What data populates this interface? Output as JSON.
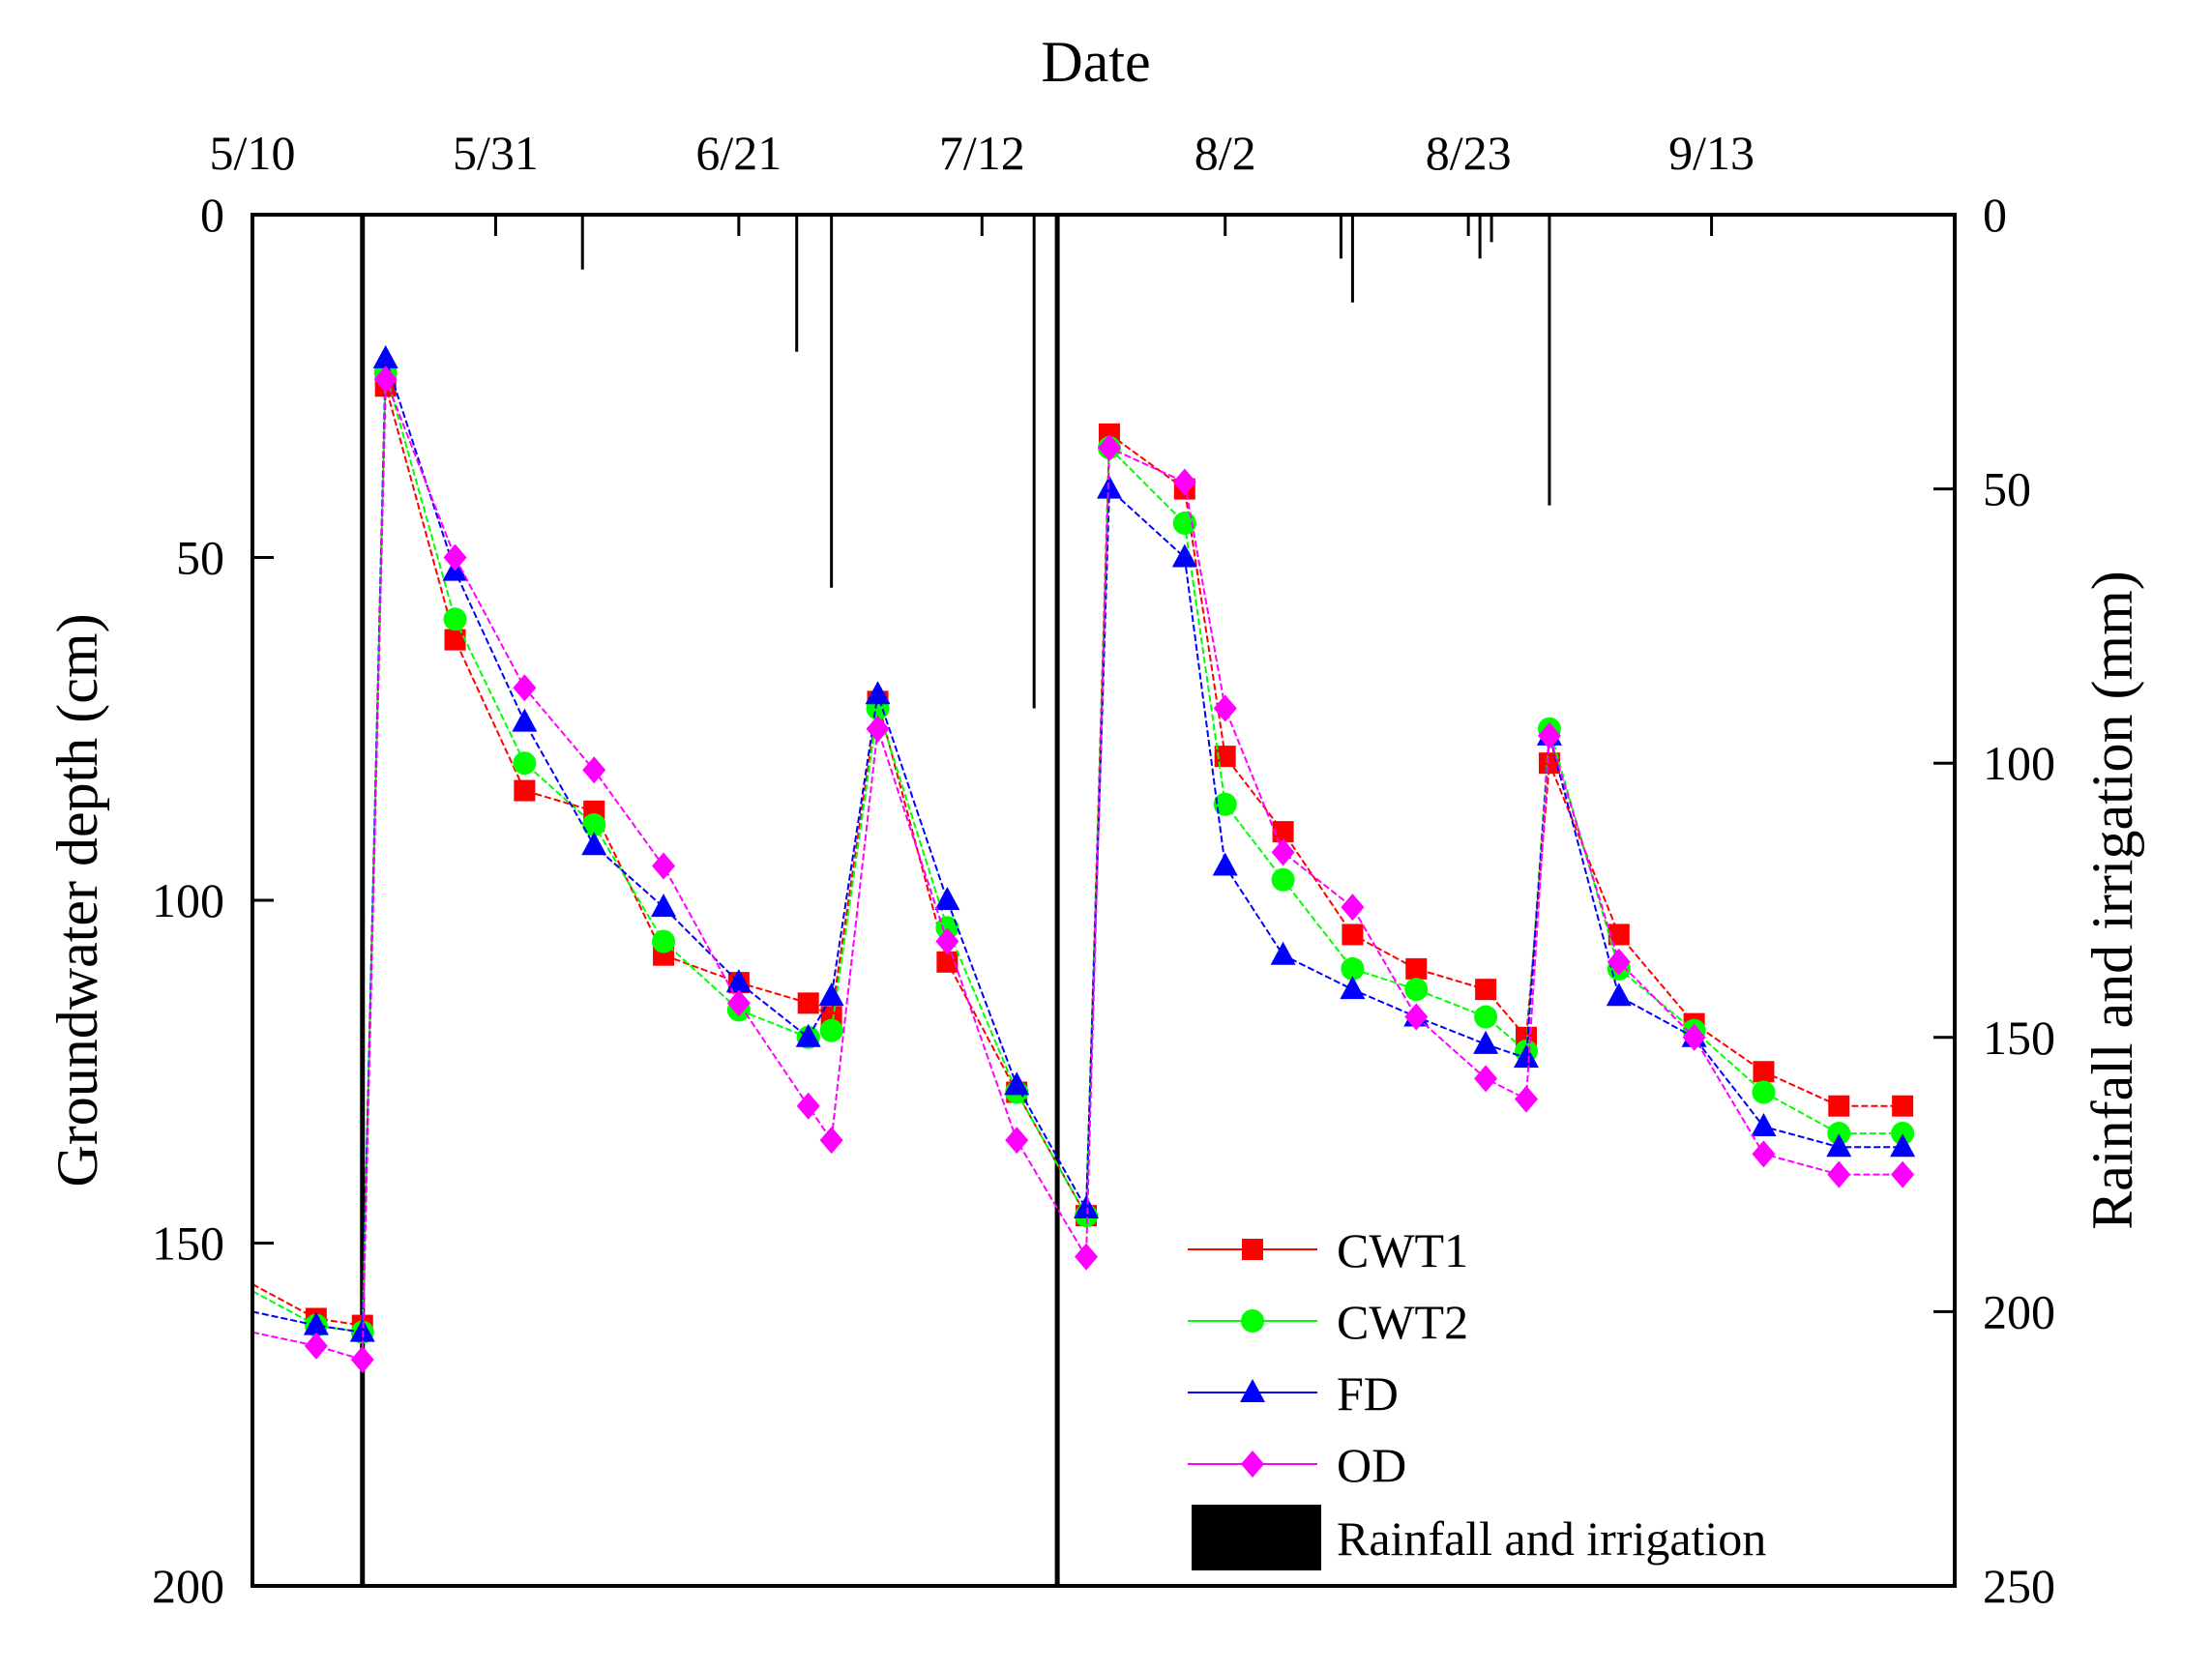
{
  "chart_data": {
    "type": "line",
    "title": "",
    "x_axis": {
      "label": "Date",
      "position": "top",
      "unit": "day of year",
      "range": [
        130,
        277
      ],
      "ticks": [
        130,
        151,
        172,
        193,
        214,
        235,
        256
      ],
      "tick_labels": [
        "5/10",
        "5/31",
        "6/21",
        "7/12",
        "8/2",
        "8/23",
        "9/13"
      ]
    },
    "y_left": {
      "label": "Groundwater depth (cm)",
      "range": [
        0,
        200
      ],
      "inverted": true,
      "ticks": [
        0,
        50,
        100,
        150,
        200
      ],
      "tick_labels": [
        "0",
        "50",
        "100",
        "150",
        "200"
      ]
    },
    "y_right": {
      "label": "Rainfall and irrigation (mm)",
      "range": [
        0,
        250
      ],
      "inverted": true,
      "ticks": [
        0,
        50,
        100,
        150,
        200,
        250
      ],
      "tick_labels": [
        "0",
        "50",
        "100",
        "150",
        "200",
        "250"
      ]
    },
    "series": [
      {
        "name": "CWT1",
        "color": "#ff0000",
        "marker": "square",
        "x": [
          130,
          135.5,
          139.5,
          141.5,
          147.5,
          153.5,
          159.5,
          165.5,
          172,
          178,
          180,
          184,
          190,
          196,
          202,
          204,
          210.5,
          214,
          219,
          225,
          230.5,
          236.5,
          240,
          242,
          248,
          254.5,
          260.5,
          267,
          272.5
        ],
        "y": [
          156,
          161,
          162,
          25,
          62,
          84,
          87,
          108,
          112,
          115,
          117,
          71,
          109,
          128,
          146,
          32,
          40,
          79,
          90,
          105,
          110,
          113,
          120,
          80,
          105,
          118,
          125,
          130,
          130
        ],
        "legend_label": "CWT1"
      },
      {
        "name": "CWT2",
        "color": "#00ff00",
        "marker": "circle",
        "x": [
          130,
          135.5,
          139.5,
          141.5,
          147.5,
          153.5,
          159.5,
          165.5,
          172,
          178,
          180,
          184,
          190,
          196,
          202,
          204,
          210.5,
          214,
          219,
          225,
          230.5,
          236.5,
          240,
          242,
          248,
          254.5,
          260.5,
          267,
          272.5
        ],
        "y": [
          157,
          162,
          163,
          23,
          59,
          80,
          89,
          106,
          116,
          120,
          119,
          72,
          104,
          128,
          146,
          34,
          45,
          86,
          97,
          110,
          113,
          117,
          122,
          75,
          110,
          119,
          128,
          134,
          134
        ],
        "legend_label": "CWT2"
      },
      {
        "name": "FD",
        "color": "#0000ff",
        "marker": "triangle",
        "x": [
          130,
          135.5,
          139.5,
          141.5,
          147.5,
          153.5,
          159.5,
          165.5,
          172,
          178,
          180,
          184,
          190,
          196,
          202,
          204,
          210.5,
          214,
          219,
          225,
          230.5,
          236.5,
          240,
          242,
          248,
          254.5,
          260.5,
          267,
          272.5
        ],
        "y": [
          160,
          162,
          163,
          21,
          52,
          74,
          92,
          101,
          112,
          120,
          114,
          70,
          100,
          127,
          145,
          40,
          50,
          95,
          108,
          113,
          117,
          121,
          123,
          76,
          114,
          120,
          133,
          136,
          136
        ],
        "legend_label": "FD"
      },
      {
        "name": "OD",
        "color": "#ff00ff",
        "marker": "diamond",
        "x": [
          130,
          135.5,
          139.5,
          141.5,
          147.5,
          153.5,
          159.5,
          165.5,
          172,
          178,
          180,
          184,
          190,
          196,
          202,
          204,
          210.5,
          214,
          219,
          225,
          230.5,
          236.5,
          240,
          242,
          248,
          254.5,
          260.5,
          267,
          272.5
        ],
        "y": [
          163,
          165,
          167,
          24,
          50,
          69,
          81,
          95,
          115,
          130,
          135,
          75,
          106,
          135,
          152,
          34,
          39,
          72,
          93,
          101,
          117,
          126,
          129,
          76,
          109,
          120,
          137,
          140,
          140
        ],
        "legend_label": "OD"
      }
    ],
    "bars": {
      "name": "Rainfall and irrigation",
      "legend_label": "Rainfall and irrigation",
      "color": "#000000",
      "axis": "right",
      "x": [
        139.5,
        158.5,
        177,
        180,
        197.5,
        199.5,
        224,
        225,
        236,
        237,
        242
      ],
      "values": [
        250,
        10,
        25,
        68,
        90,
        250,
        8,
        16,
        8,
        5,
        53
      ]
    },
    "legend": {
      "position": "bottom-right"
    }
  }
}
